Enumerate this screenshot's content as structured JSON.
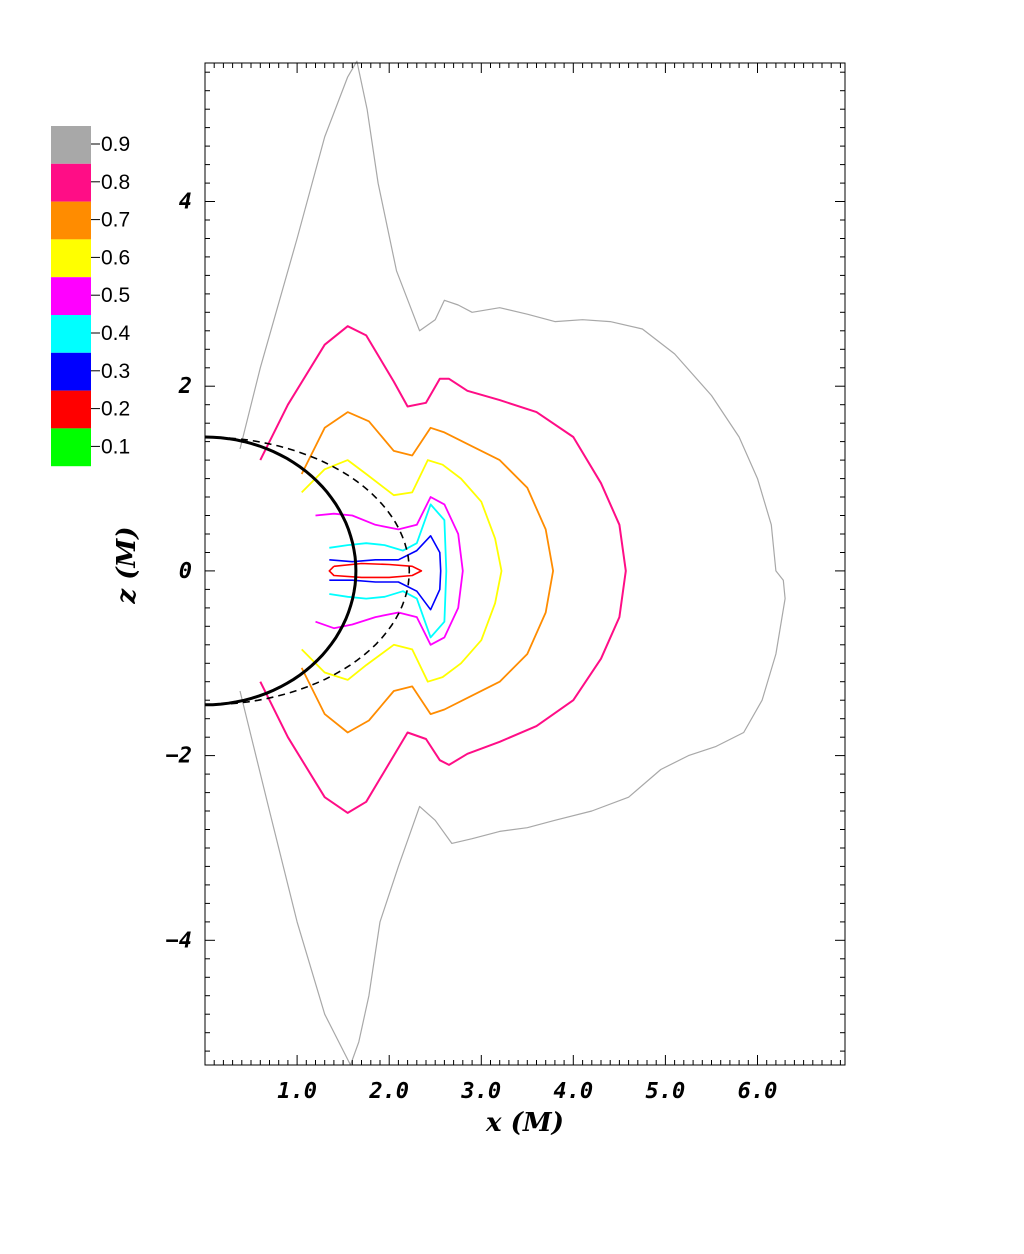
{
  "chart_data": {
    "type": "contour",
    "title": "",
    "xlabel": "x (M)",
    "ylabel": "z (M)",
    "xlim": [
      0,
      6.95
    ],
    "ylim": [
      -5.35,
      5.5
    ],
    "x_ticks": [
      1.0,
      2.0,
      3.0,
      4.0,
      5.0,
      6.0
    ],
    "x_tick_labels": [
      "1.0",
      "2.0",
      "3.0",
      "4.0",
      "5.0",
      "6.0"
    ],
    "y_ticks": [
      4,
      2,
      0,
      -2,
      -4
    ],
    "y_tick_labels": [
      "4",
      "2",
      "0",
      "−2",
      "−4"
    ],
    "grid": false,
    "legend": {
      "placement": "top-left",
      "entries": [
        {
          "label": "0.9",
          "color": "#a8a8a8"
        },
        {
          "label": "0.8",
          "color": "#ff0d86"
        },
        {
          "label": "0.7",
          "color": "#ff8c00"
        },
        {
          "label": "0.6",
          "color": "#ffff00"
        },
        {
          "label": "0.5",
          "color": "#ff00ff"
        },
        {
          "label": "0.4",
          "color": "#00ffff"
        },
        {
          "label": "0.3",
          "color": "#0000ff"
        },
        {
          "label": "0.2",
          "color": "#ff0000"
        },
        {
          "label": "0.1",
          "color": "#00ff00"
        }
      ]
    },
    "series": [
      {
        "level": "0.9",
        "color": "#a8a8a8",
        "width": 1.2,
        "points": [
          [
            0.38,
            1.32
          ],
          [
            0.6,
            2.2
          ],
          [
            1.0,
            3.6
          ],
          [
            1.3,
            4.7
          ],
          [
            1.55,
            5.35
          ],
          [
            1.65,
            5.52
          ],
          [
            1.76,
            5.0
          ],
          [
            1.88,
            4.2
          ],
          [
            2.08,
            3.25
          ],
          [
            2.33,
            2.6
          ],
          [
            2.5,
            2.72
          ],
          [
            2.6,
            2.93
          ],
          [
            2.75,
            2.88
          ],
          [
            2.9,
            2.8
          ],
          [
            3.2,
            2.85
          ],
          [
            3.5,
            2.78
          ],
          [
            3.8,
            2.7
          ],
          [
            4.1,
            2.72
          ],
          [
            4.4,
            2.7
          ],
          [
            4.75,
            2.62
          ],
          [
            5.1,
            2.35
          ],
          [
            5.5,
            1.9
          ],
          [
            5.8,
            1.45
          ],
          [
            6.0,
            1.0
          ],
          [
            6.15,
            0.5
          ],
          [
            6.2,
            0.0
          ],
          [
            6.28,
            -0.1
          ],
          [
            6.3,
            -0.3
          ],
          [
            6.2,
            -0.9
          ],
          [
            6.05,
            -1.4
          ],
          [
            5.85,
            -1.75
          ],
          [
            5.55,
            -1.9
          ],
          [
            5.25,
            -2.0
          ],
          [
            4.95,
            -2.15
          ],
          [
            4.6,
            -2.45
          ],
          [
            4.2,
            -2.6
          ],
          [
            3.8,
            -2.7
          ],
          [
            3.5,
            -2.78
          ],
          [
            3.2,
            -2.82
          ],
          [
            2.9,
            -2.9
          ],
          [
            2.68,
            -2.95
          ],
          [
            2.5,
            -2.7
          ],
          [
            2.33,
            -2.55
          ],
          [
            2.1,
            -3.2
          ],
          [
            1.9,
            -3.8
          ],
          [
            1.78,
            -4.6
          ],
          [
            1.67,
            -5.1
          ],
          [
            1.58,
            -5.35
          ],
          [
            1.3,
            -4.8
          ],
          [
            1.0,
            -3.8
          ],
          [
            0.7,
            -2.6
          ],
          [
            0.38,
            -1.3
          ]
        ]
      },
      {
        "level": "0.8",
        "color": "#ff0d86",
        "width": 2,
        "points": [
          [
            0.6,
            1.2
          ],
          [
            0.9,
            1.8
          ],
          [
            1.3,
            2.45
          ],
          [
            1.55,
            2.65
          ],
          [
            1.75,
            2.55
          ],
          [
            2.05,
            2.05
          ],
          [
            2.2,
            1.78
          ],
          [
            2.4,
            1.82
          ],
          [
            2.55,
            2.08
          ],
          [
            2.65,
            2.08
          ],
          [
            2.85,
            1.95
          ],
          [
            3.2,
            1.85
          ],
          [
            3.6,
            1.72
          ],
          [
            4.0,
            1.45
          ],
          [
            4.3,
            0.95
          ],
          [
            4.5,
            0.5
          ],
          [
            4.57,
            0.0
          ],
          [
            4.5,
            -0.5
          ],
          [
            4.3,
            -0.95
          ],
          [
            4.0,
            -1.4
          ],
          [
            3.6,
            -1.68
          ],
          [
            3.2,
            -1.85
          ],
          [
            2.85,
            -1.98
          ],
          [
            2.65,
            -2.1
          ],
          [
            2.55,
            -2.05
          ],
          [
            2.4,
            -1.82
          ],
          [
            2.2,
            -1.75
          ],
          [
            2.05,
            -2.0
          ],
          [
            1.75,
            -2.5
          ],
          [
            1.55,
            -2.62
          ],
          [
            1.3,
            -2.45
          ],
          [
            0.9,
            -1.8
          ],
          [
            0.6,
            -1.2
          ]
        ]
      },
      {
        "level": "0.7",
        "color": "#ff8c00",
        "width": 1.8,
        "points": [
          [
            1.05,
            1.05
          ],
          [
            1.3,
            1.55
          ],
          [
            1.55,
            1.72
          ],
          [
            1.78,
            1.62
          ],
          [
            2.05,
            1.3
          ],
          [
            2.25,
            1.25
          ],
          [
            2.45,
            1.55
          ],
          [
            2.6,
            1.5
          ],
          [
            2.9,
            1.35
          ],
          [
            3.2,
            1.2
          ],
          [
            3.5,
            0.9
          ],
          [
            3.7,
            0.45
          ],
          [
            3.78,
            0.0
          ],
          [
            3.7,
            -0.45
          ],
          [
            3.5,
            -0.9
          ],
          [
            3.2,
            -1.2
          ],
          [
            2.9,
            -1.35
          ],
          [
            2.6,
            -1.5
          ],
          [
            2.45,
            -1.55
          ],
          [
            2.25,
            -1.25
          ],
          [
            2.05,
            -1.3
          ],
          [
            1.78,
            -1.62
          ],
          [
            1.55,
            -1.75
          ],
          [
            1.3,
            -1.55
          ],
          [
            1.05,
            -1.05
          ]
        ]
      },
      {
        "level": "0.6",
        "color": "#ffff00",
        "width": 1.8,
        "points": [
          [
            1.05,
            0.85
          ],
          [
            1.3,
            1.1
          ],
          [
            1.55,
            1.2
          ],
          [
            1.75,
            1.05
          ],
          [
            2.05,
            0.82
          ],
          [
            2.25,
            0.85
          ],
          [
            2.42,
            1.2
          ],
          [
            2.58,
            1.15
          ],
          [
            2.78,
            1.0
          ],
          [
            3.0,
            0.75
          ],
          [
            3.15,
            0.35
          ],
          [
            3.22,
            0.0
          ],
          [
            3.15,
            -0.35
          ],
          [
            3.0,
            -0.75
          ],
          [
            2.78,
            -1.0
          ],
          [
            2.58,
            -1.15
          ],
          [
            2.42,
            -1.2
          ],
          [
            2.25,
            -0.85
          ],
          [
            2.05,
            -0.8
          ],
          [
            1.75,
            -1.02
          ],
          [
            1.55,
            -1.18
          ],
          [
            1.3,
            -1.1
          ],
          [
            1.05,
            -0.85
          ]
        ]
      },
      {
        "level": "0.5",
        "color": "#ff00ff",
        "width": 1.8,
        "points": [
          [
            1.2,
            0.6
          ],
          [
            1.4,
            0.62
          ],
          [
            1.6,
            0.6
          ],
          [
            1.85,
            0.5
          ],
          [
            2.1,
            0.45
          ],
          [
            2.3,
            0.5
          ],
          [
            2.45,
            0.8
          ],
          [
            2.6,
            0.72
          ],
          [
            2.75,
            0.4
          ],
          [
            2.8,
            0.0
          ],
          [
            2.75,
            -0.4
          ],
          [
            2.6,
            -0.72
          ],
          [
            2.45,
            -0.8
          ],
          [
            2.3,
            -0.5
          ],
          [
            2.1,
            -0.45
          ],
          [
            1.85,
            -0.5
          ],
          [
            1.6,
            -0.58
          ],
          [
            1.4,
            -0.62
          ],
          [
            1.2,
            -0.55
          ]
        ]
      },
      {
        "level": "0.4",
        "color": "#00ffff",
        "width": 1.8,
        "points": [
          [
            1.35,
            0.25
          ],
          [
            1.55,
            0.28
          ],
          [
            1.75,
            0.3
          ],
          [
            1.95,
            0.28
          ],
          [
            2.15,
            0.22
          ],
          [
            2.3,
            0.3
          ],
          [
            2.45,
            0.72
          ],
          [
            2.6,
            0.55
          ],
          [
            2.62,
            0.0
          ],
          [
            2.6,
            -0.55
          ],
          [
            2.45,
            -0.72
          ],
          [
            2.3,
            -0.3
          ],
          [
            2.15,
            -0.22
          ],
          [
            1.95,
            -0.28
          ],
          [
            1.75,
            -0.3
          ],
          [
            1.55,
            -0.28
          ],
          [
            1.35,
            -0.25
          ]
        ]
      },
      {
        "level": "0.3",
        "color": "#0000ff",
        "width": 1.6,
        "points": [
          [
            1.35,
            0.12
          ],
          [
            1.6,
            0.1
          ],
          [
            1.85,
            0.12
          ],
          [
            2.1,
            0.12
          ],
          [
            2.3,
            0.22
          ],
          [
            2.45,
            0.38
          ],
          [
            2.55,
            0.2
          ],
          [
            2.56,
            0.0
          ],
          [
            2.55,
            -0.2
          ],
          [
            2.45,
            -0.42
          ],
          [
            2.3,
            -0.22
          ],
          [
            2.1,
            -0.12
          ],
          [
            1.85,
            -0.12
          ],
          [
            1.6,
            -0.1
          ],
          [
            1.35,
            -0.1
          ]
        ]
      },
      {
        "level": "0.2",
        "color": "#ff0000",
        "width": 1.6,
        "points": [
          [
            1.4,
            0.05
          ],
          [
            1.7,
            0.08
          ],
          [
            2.0,
            0.07
          ],
          [
            2.25,
            0.05
          ],
          [
            2.35,
            0.0
          ],
          [
            2.25,
            -0.05
          ],
          [
            2.0,
            -0.07
          ],
          [
            1.7,
            -0.07
          ],
          [
            1.4,
            -0.05
          ],
          [
            1.35,
            0.0
          ],
          [
            1.4,
            0.05
          ]
        ]
      }
    ],
    "reference_curves": [
      {
        "style": "solid",
        "color": "#000000",
        "radius": 1.45,
        "x_scale": 1.13
      },
      {
        "style": "dashed",
        "color": "#000000",
        "radius": 1.45,
        "x_scale": 1.53
      }
    ]
  }
}
